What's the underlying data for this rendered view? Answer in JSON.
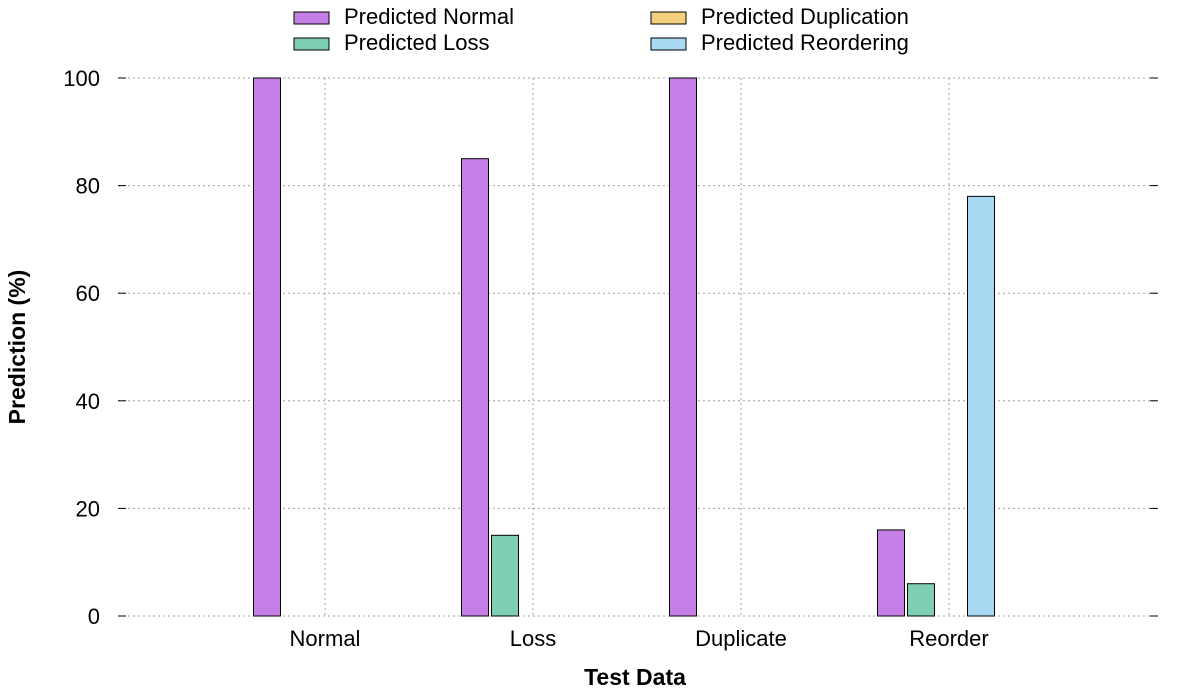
{
  "chart_data": {
    "type": "bar",
    "categories": [
      "Normal",
      "Loss",
      "Duplicate",
      "Reorder"
    ],
    "series": [
      {
        "name": "Predicted Normal",
        "color": "#c77fe8",
        "values": [
          100,
          85,
          100,
          16
        ]
      },
      {
        "name": "Predicted Loss",
        "color": "#7ecfb6",
        "values": [
          0,
          15,
          0,
          6
        ]
      },
      {
        "name": "Predicted Duplication",
        "color": "#f2d07e",
        "values": [
          0,
          0,
          0,
          0
        ]
      },
      {
        "name": "Predicted Reordering",
        "color": "#a9d8f2",
        "values": [
          0,
          0,
          0,
          78
        ]
      }
    ],
    "title": "",
    "xlabel": "Test Data",
    "ylabel": "Prediction (%)",
    "ylim": [
      0,
      100
    ],
    "yticks": [
      0,
      20,
      40,
      60,
      80,
      100
    ],
    "grid": true,
    "legend_position": "top"
  }
}
